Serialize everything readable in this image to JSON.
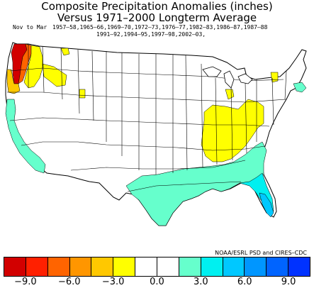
{
  "title": {
    "line1": "Composite Precipitation Anomalies (inches)",
    "line2": "Versus 1971–2000 Longterm Average"
  },
  "season": "Nov to Mar",
  "years": {
    "line1": "1957–58,1965–66,1969–70,1972–73,1976–77,1982–83,1986–87,1987–88",
    "line2": "1991–92,1994–95,1997–98,2002–03,"
  },
  "credit": "NOAA/ESRL PSD and CIRES–CDC",
  "colorbar": {
    "colors": [
      "#d20000",
      "#ff2000",
      "#ff6400",
      "#ff9600",
      "#ffc800",
      "#ffff00",
      "#ffffff",
      "#ffffff",
      "#66ffcc",
      "#00f0f0",
      "#00c8ff",
      "#0096ff",
      "#0064ff",
      "#0032ff"
    ],
    "tick_labels": [
      "−9.0",
      "−6.0",
      "−3.0",
      "0.0",
      "3.0",
      "6.0",
      "9.0"
    ]
  },
  "map_colors": {
    "outline": "#000000",
    "land": "#ffffff",
    "wet_light": "#66ffcc",
    "wet_mid": "#00f0f0",
    "wet_strong": "#00c8ff",
    "dry_light": "#ffff00",
    "dry_mid": "#ffc800",
    "dry_strong": "#ff6400",
    "dry_extreme": "#d20000"
  }
}
